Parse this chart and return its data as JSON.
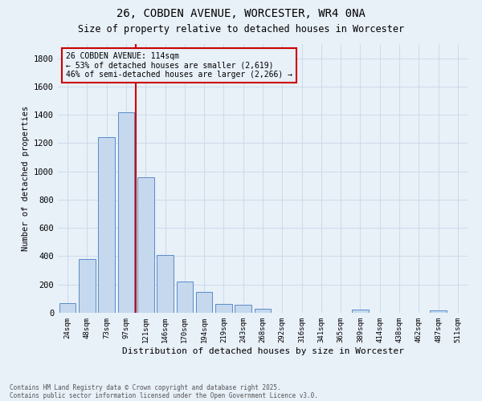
{
  "title_line1": "26, COBDEN AVENUE, WORCESTER, WR4 0NA",
  "title_line2": "Size of property relative to detached houses in Worcester",
  "xlabel": "Distribution of detached houses by size in Worcester",
  "ylabel": "Number of detached properties",
  "bar_categories": [
    "24sqm",
    "48sqm",
    "73sqm",
    "97sqm",
    "121sqm",
    "146sqm",
    "170sqm",
    "194sqm",
    "219sqm",
    "243sqm",
    "268sqm",
    "292sqm",
    "316sqm",
    "341sqm",
    "365sqm",
    "389sqm",
    "414sqm",
    "438sqm",
    "462sqm",
    "487sqm",
    "511sqm"
  ],
  "bar_values": [
    70,
    380,
    1240,
    1420,
    960,
    410,
    220,
    150,
    65,
    55,
    30,
    0,
    0,
    0,
    0,
    20,
    0,
    0,
    0,
    15,
    0
  ],
  "bar_color": "#c5d8ee",
  "bar_edge_color": "#5b8cc8",
  "grid_color": "#c8d8e8",
  "vline_color": "#cc0000",
  "annotation_line1": "26 COBDEN AVENUE: 114sqm",
  "annotation_line2": "← 53% of detached houses are smaller (2,619)",
  "annotation_line3": "46% of semi-detached houses are larger (2,266) →",
  "ylim": [
    0,
    1900
  ],
  "yticks": [
    0,
    200,
    400,
    600,
    800,
    1000,
    1200,
    1400,
    1600,
    1800
  ],
  "footer_line1": "Contains HM Land Registry data © Crown copyright and database right 2025.",
  "footer_line2": "Contains public sector information licensed under the Open Government Licence v3.0.",
  "bg_color": "#e8f0f8"
}
